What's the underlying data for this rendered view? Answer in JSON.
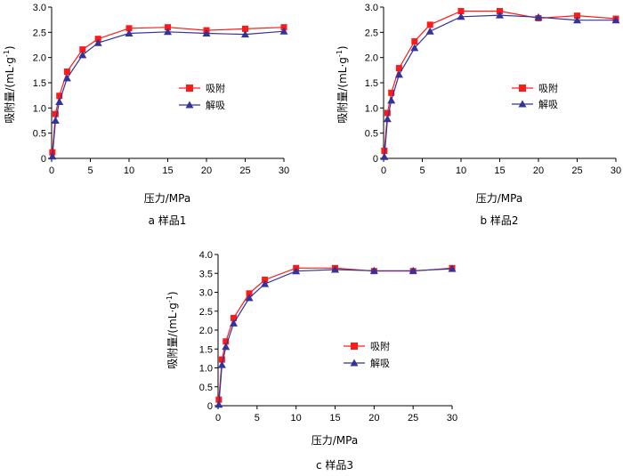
{
  "colors": {
    "adsorption": "#ff1a1a",
    "desorption": "#333399",
    "axis": "#000000"
  },
  "chart_data": [
    {
      "type": "line",
      "caption": "a  样品1",
      "xlabel": "压力/MPa",
      "ylabel_main": "吸附量/(mL·g",
      "ylabel_sup": "-1",
      "ylabel_close": ")",
      "xlim": [
        0,
        30
      ],
      "ylim": [
        0,
        3.0
      ],
      "xticks": [
        0,
        5,
        10,
        15,
        20,
        25,
        30
      ],
      "yticks": [
        "0",
        "0.5",
        "1.0",
        "1.5",
        "2.0",
        "2.5",
        "3.0"
      ],
      "series": [
        {
          "name": "吸附",
          "marker": "square",
          "x": [
            0.1,
            0.5,
            1,
            2,
            4,
            6,
            10,
            15,
            20,
            25,
            30
          ],
          "y": [
            0.12,
            0.88,
            1.24,
            1.72,
            2.16,
            2.37,
            2.58,
            2.6,
            2.54,
            2.57,
            2.6
          ]
        },
        {
          "name": "解吸",
          "marker": "triangle",
          "x": [
            0.1,
            0.5,
            1,
            2,
            4,
            6,
            10,
            15,
            20,
            25,
            30
          ],
          "y": [
            0.04,
            0.75,
            1.12,
            1.59,
            2.05,
            2.29,
            2.48,
            2.51,
            2.48,
            2.46,
            2.52
          ]
        }
      ]
    },
    {
      "type": "line",
      "caption": "b  样品2",
      "xlabel": "压力/MPa",
      "ylabel_main": "吸附量/(mL·g",
      "ylabel_sup": "-1",
      "ylabel_close": ")",
      "xlim": [
        0,
        30
      ],
      "ylim": [
        0,
        3.0
      ],
      "xticks": [
        0,
        5,
        10,
        15,
        20,
        25,
        30
      ],
      "yticks": [
        "0",
        "0.5",
        "1.0",
        "1.5",
        "2.0",
        "2.5",
        "3.0"
      ],
      "series": [
        {
          "name": "吸附",
          "marker": "square",
          "x": [
            0.1,
            0.5,
            1,
            2,
            4,
            6,
            10,
            15,
            20,
            25,
            30
          ],
          "y": [
            0.15,
            0.9,
            1.3,
            1.79,
            2.32,
            2.65,
            2.92,
            2.92,
            2.78,
            2.83,
            2.77
          ]
        },
        {
          "name": "解吸",
          "marker": "triangle",
          "x": [
            0.1,
            0.5,
            1,
            2,
            4,
            6,
            10,
            15,
            20,
            25,
            30
          ],
          "y": [
            0.03,
            0.78,
            1.15,
            1.66,
            2.19,
            2.52,
            2.81,
            2.84,
            2.8,
            2.74,
            2.74
          ]
        }
      ]
    },
    {
      "type": "line",
      "caption": "c  样品3",
      "xlabel": "压力/MPa",
      "ylabel_main": "吸附量/(mL·g",
      "ylabel_sup": "-1",
      "ylabel_close": ")",
      "xlim": [
        0,
        30
      ],
      "ylim": [
        0,
        4.0
      ],
      "xticks": [
        0,
        5,
        10,
        15,
        20,
        25,
        30
      ],
      "yticks": [
        "0",
        "0.5",
        "1.0",
        "1.5",
        "2.0",
        "2.5",
        "3.0",
        "3.5",
        "4.0"
      ],
      "series": [
        {
          "name": "吸附",
          "marker": "square",
          "x": [
            0.1,
            0.5,
            1,
            2,
            4,
            6,
            10,
            15,
            20,
            25,
            30
          ],
          "y": [
            0.16,
            1.22,
            1.7,
            2.32,
            2.97,
            3.33,
            3.64,
            3.64,
            3.56,
            3.56,
            3.64
          ]
        },
        {
          "name": "解吸",
          "marker": "triangle",
          "x": [
            0.1,
            0.5,
            1,
            2,
            4,
            6,
            10,
            15,
            20,
            25,
            30
          ],
          "y": [
            0.03,
            1.08,
            1.56,
            2.18,
            2.85,
            3.22,
            3.56,
            3.6,
            3.57,
            3.57,
            3.62
          ]
        }
      ]
    }
  ]
}
